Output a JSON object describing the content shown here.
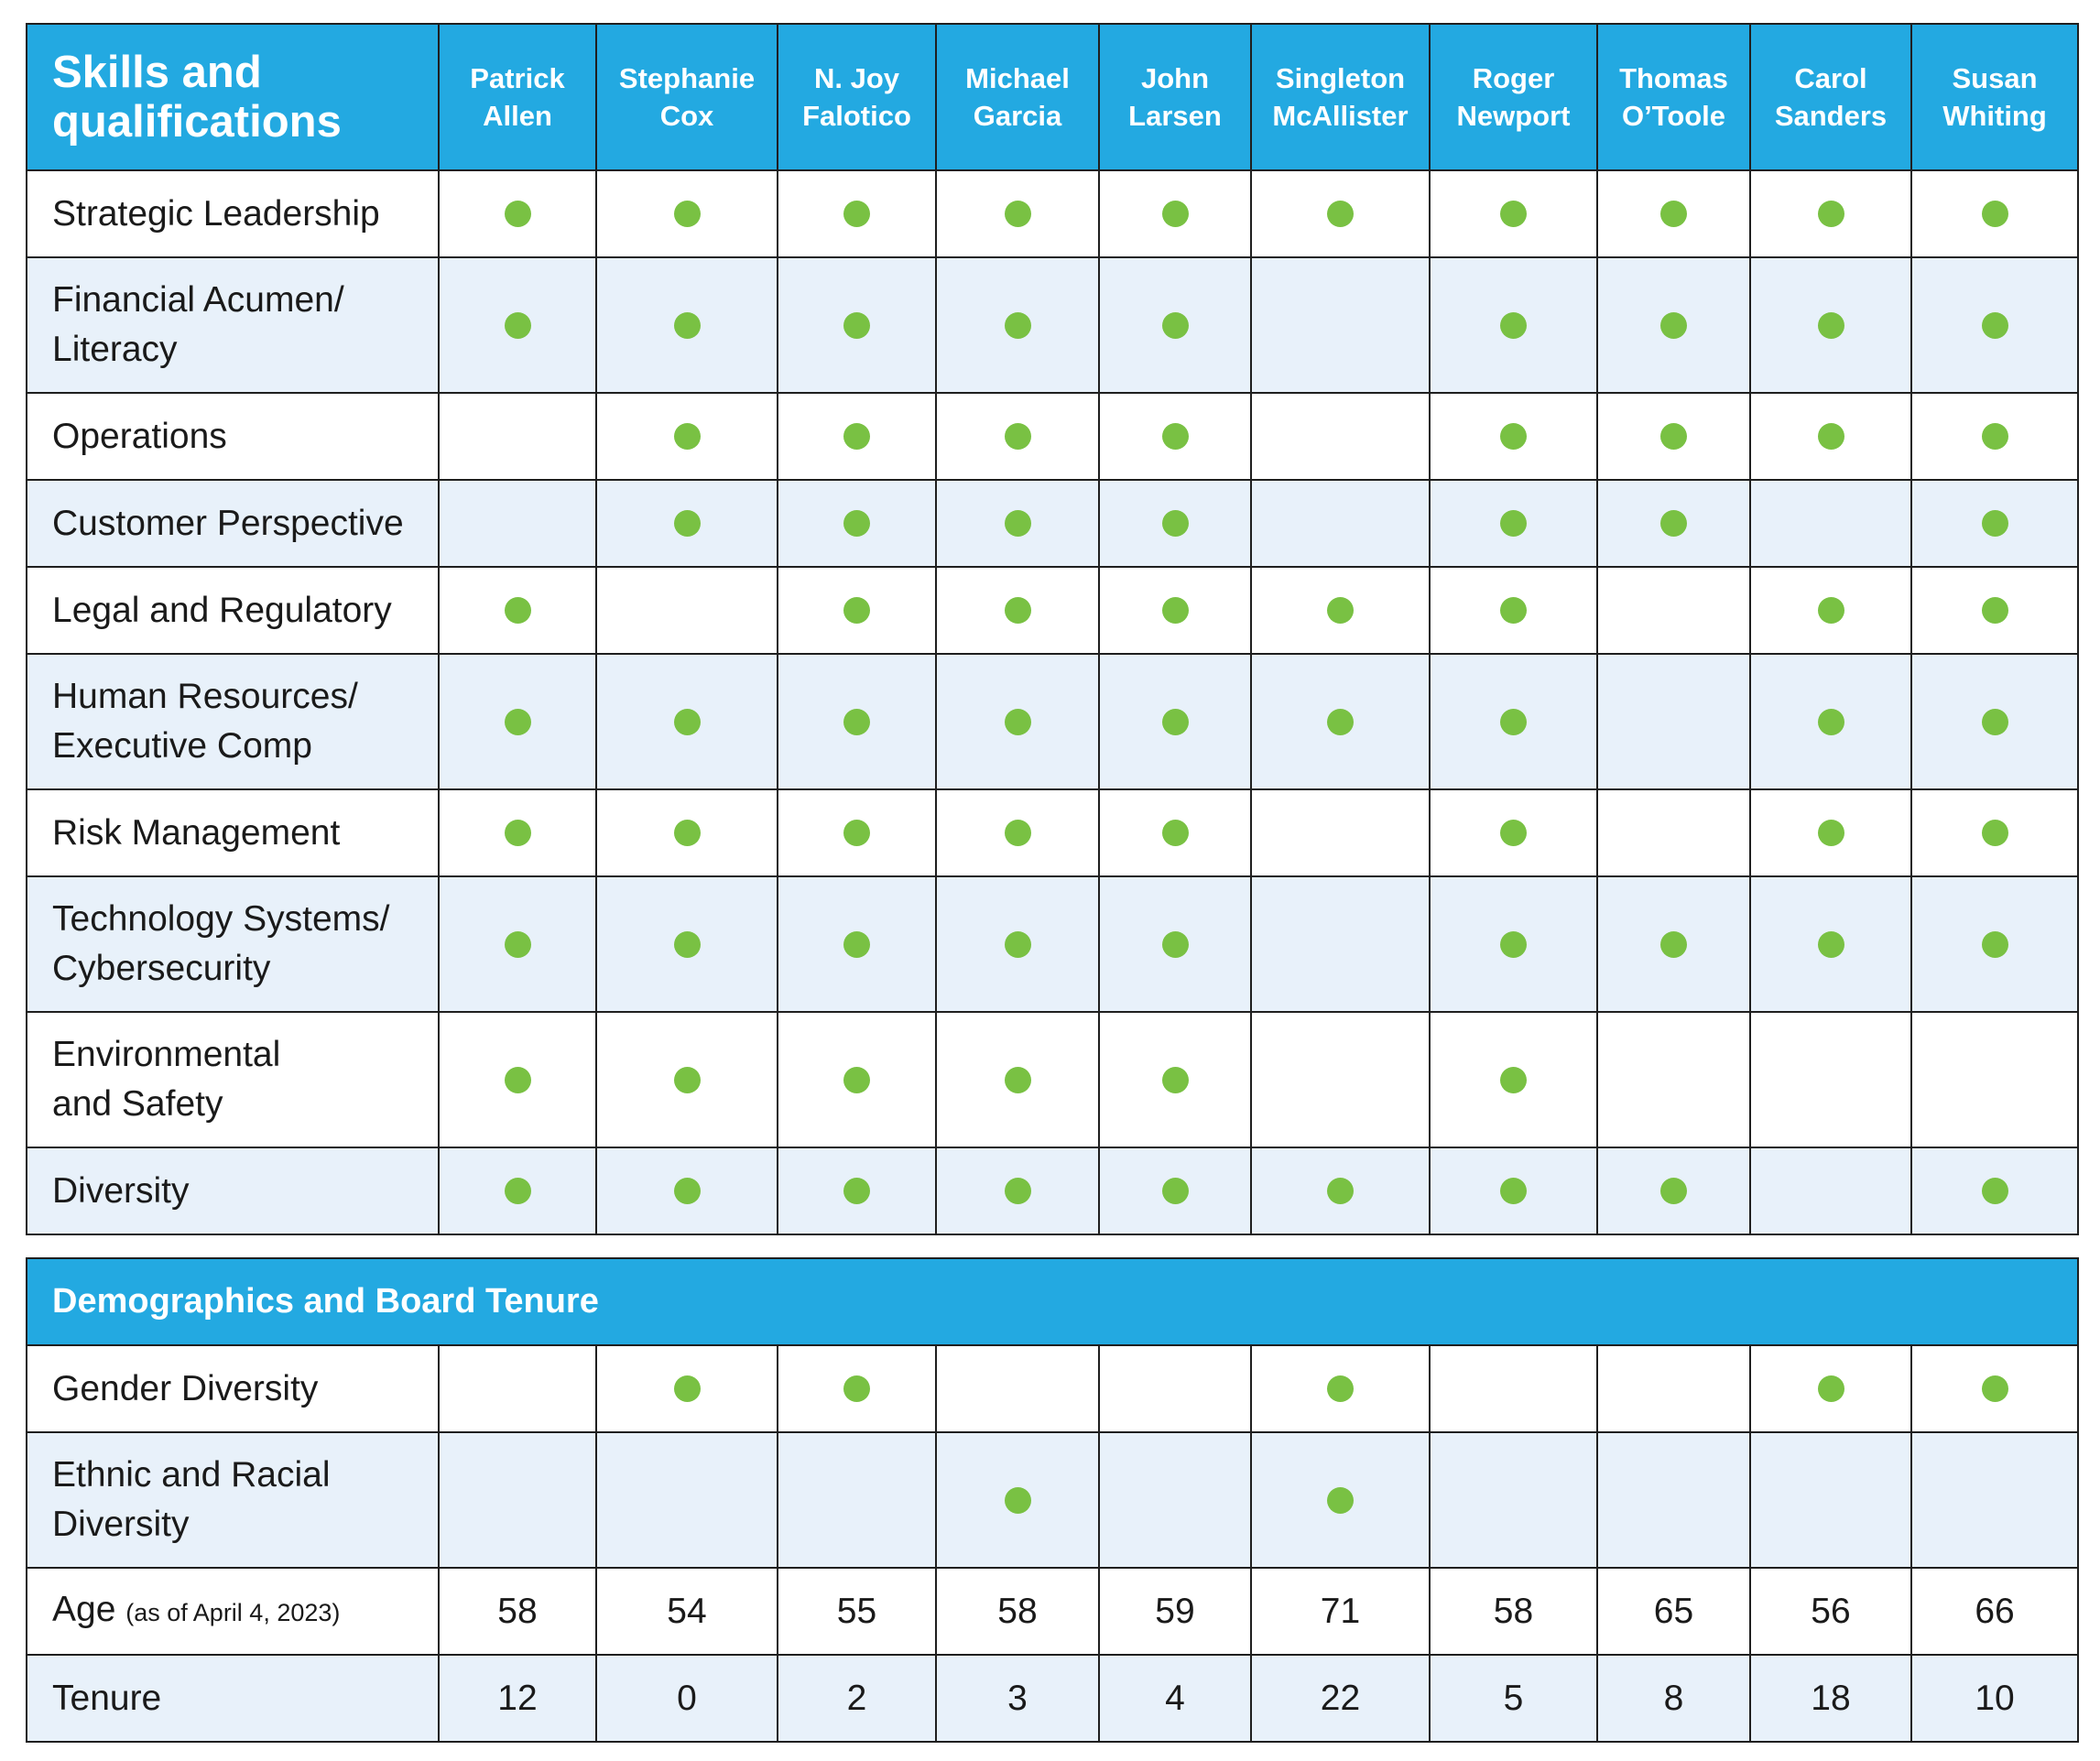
{
  "skills_section": {
    "title_line1": "Skills and",
    "title_line2": "qualifications"
  },
  "directors": [
    {
      "first": "Patrick",
      "last": "Allen"
    },
    {
      "first": "Stephanie",
      "last": "Cox"
    },
    {
      "first": "N. Joy",
      "last": "Falotico"
    },
    {
      "first": "Michael",
      "last": "Garcia"
    },
    {
      "first": "John",
      "last": "Larsen"
    },
    {
      "first": "Singleton",
      "last": "McAllister"
    },
    {
      "first": "Roger",
      "last": "Newport"
    },
    {
      "first": "Thomas",
      "last": "O’Toole"
    },
    {
      "first": "Carol",
      "last": "Sanders"
    },
    {
      "first": "Susan",
      "last": "Whiting"
    }
  ],
  "skills": [
    {
      "line1": "Strategic Leadership",
      "line2": "",
      "marks": [
        1,
        1,
        1,
        1,
        1,
        1,
        1,
        1,
        1,
        1
      ]
    },
    {
      "line1": "Financial Acumen/",
      "line2": "Literacy",
      "marks": [
        1,
        1,
        1,
        1,
        1,
        0,
        1,
        1,
        1,
        1
      ]
    },
    {
      "line1": "Operations",
      "line2": "",
      "marks": [
        0,
        1,
        1,
        1,
        1,
        0,
        1,
        1,
        1,
        1
      ]
    },
    {
      "line1": "Customer Perspective",
      "line2": "",
      "marks": [
        0,
        1,
        1,
        1,
        1,
        0,
        1,
        1,
        0,
        1
      ]
    },
    {
      "line1": "Legal and Regulatory",
      "line2": "",
      "marks": [
        1,
        0,
        1,
        1,
        1,
        1,
        1,
        0,
        1,
        1
      ]
    },
    {
      "line1": "Human Resources/",
      "line2": "Executive Comp",
      "marks": [
        1,
        1,
        1,
        1,
        1,
        1,
        1,
        0,
        1,
        1
      ]
    },
    {
      "line1": "Risk Management",
      "line2": "",
      "marks": [
        1,
        1,
        1,
        1,
        1,
        0,
        1,
        0,
        1,
        1
      ]
    },
    {
      "line1": "Technology Systems/",
      "line2": "Cybersecurity",
      "marks": [
        1,
        1,
        1,
        1,
        1,
        0,
        1,
        1,
        1,
        1
      ]
    },
    {
      "line1": "Environmental",
      "line2": "and Safety",
      "marks": [
        1,
        1,
        1,
        1,
        1,
        0,
        1,
        0,
        0,
        0
      ]
    },
    {
      "line1": "Diversity",
      "line2": "",
      "marks": [
        1,
        1,
        1,
        1,
        1,
        1,
        1,
        1,
        0,
        1
      ]
    }
  ],
  "demographics_section": {
    "title": "Demographics and Board Tenure"
  },
  "demographics": [
    {
      "line1": "Gender Diversity",
      "line2": "",
      "marks": [
        0,
        1,
        1,
        0,
        0,
        1,
        0,
        0,
        1,
        1
      ]
    },
    {
      "line1": "Ethnic and Racial",
      "line2": "Diversity",
      "marks": [
        0,
        0,
        0,
        1,
        0,
        1,
        0,
        0,
        0,
        0
      ]
    }
  ],
  "age": {
    "label": "Age",
    "note": "(as of April 4, 2023)",
    "values": [
      "58",
      "54",
      "55",
      "58",
      "59",
      "71",
      "58",
      "65",
      "56",
      "66"
    ]
  },
  "tenure": {
    "label": "Tenure",
    "values": [
      "12",
      "0",
      "2",
      "3",
      "4",
      "22",
      "5",
      "8",
      "18",
      "10"
    ]
  },
  "colors": {
    "header": "#23a9e1",
    "dot": "#79c143",
    "alt_row": "#e8f1fa"
  }
}
